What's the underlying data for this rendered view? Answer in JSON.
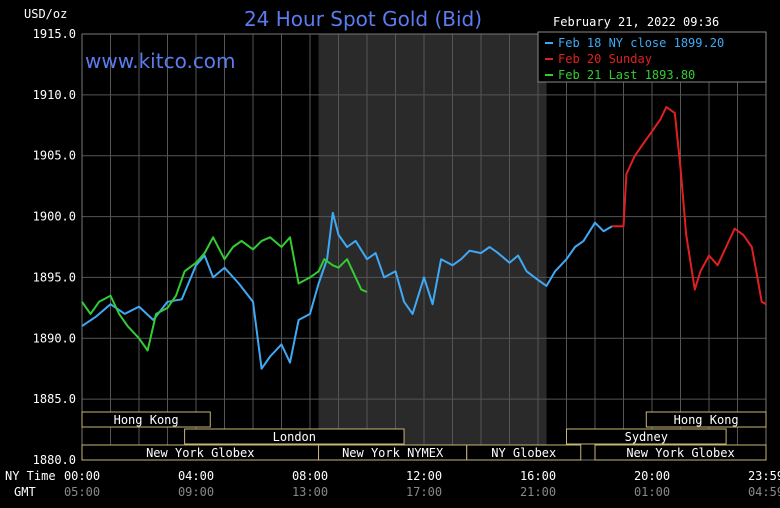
{
  "chart_data": {
    "type": "line",
    "title": "24 Hour Spot Gold (Bid)",
    "ylabel": "USD/oz",
    "watermark": "www.kitco.com",
    "timestamp": "February 21, 2022 09:36",
    "ylim": [
      1880,
      1915
    ],
    "yticks": [
      "1915.0",
      "1910.0",
      "1905.0",
      "1900.0",
      "1895.0",
      "1890.0",
      "1885.0",
      "1880.0"
    ],
    "xlim": [
      0,
      24
    ],
    "x_row_labels": {
      "ny": "NY Time",
      "gmt": "GMT"
    },
    "xticks_ny": [
      "00:00",
      "04:00",
      "08:00",
      "12:00",
      "16:00",
      "20:00",
      "23:59"
    ],
    "xticks_gmt": [
      "05:00",
      "09:00",
      "13:00",
      "17:00",
      "21:00",
      "01:00",
      "04:59"
    ],
    "shaded_region": [
      8.3,
      16.3
    ],
    "grid": true,
    "legend_position": "top-right",
    "legend": [
      {
        "label": "Feb 18 NY close 1899.20",
        "color": "#3fa9f5"
      },
      {
        "label": "Feb 20 Sunday",
        "color": "#e02020"
      },
      {
        "label": "Feb 21 Last 1893.80",
        "color": "#33cc33"
      }
    ],
    "series": [
      {
        "name": "Feb 18",
        "color": "#3fa9f5",
        "points": [
          [
            0,
            1891.0
          ],
          [
            0.5,
            1891.8
          ],
          [
            1,
            1892.8
          ],
          [
            1.5,
            1892.0
          ],
          [
            2,
            1892.6
          ],
          [
            2.5,
            1891.5
          ],
          [
            3,
            1893.0
          ],
          [
            3.5,
            1893.2
          ],
          [
            4,
            1896.0
          ],
          [
            4.3,
            1896.8
          ],
          [
            4.6,
            1895.0
          ],
          [
            5,
            1895.8
          ],
          [
            5.5,
            1894.5
          ],
          [
            6,
            1893.0
          ],
          [
            6.3,
            1887.5
          ],
          [
            6.6,
            1888.5
          ],
          [
            7,
            1889.5
          ],
          [
            7.3,
            1888.0
          ],
          [
            7.6,
            1891.5
          ],
          [
            8,
            1892.0
          ],
          [
            8.3,
            1894.5
          ],
          [
            8.6,
            1896.5
          ],
          [
            8.8,
            1900.3
          ],
          [
            9,
            1898.5
          ],
          [
            9.3,
            1897.5
          ],
          [
            9.6,
            1898.0
          ],
          [
            10,
            1896.5
          ],
          [
            10.3,
            1897.0
          ],
          [
            10.6,
            1895.0
          ],
          [
            11,
            1895.5
          ],
          [
            11.3,
            1893.0
          ],
          [
            11.6,
            1892.0
          ],
          [
            12,
            1895.0
          ],
          [
            12.3,
            1892.8
          ],
          [
            12.6,
            1896.5
          ],
          [
            13,
            1896.0
          ],
          [
            13.3,
            1896.5
          ],
          [
            13.6,
            1897.2
          ],
          [
            14,
            1897.0
          ],
          [
            14.3,
            1897.5
          ],
          [
            14.6,
            1897.0
          ],
          [
            15,
            1896.2
          ],
          [
            15.3,
            1896.8
          ],
          [
            15.6,
            1895.5
          ],
          [
            16,
            1894.8
          ],
          [
            16.3,
            1894.3
          ],
          [
            16.6,
            1895.5
          ],
          [
            17,
            1896.5
          ],
          [
            17.3,
            1897.5
          ],
          [
            17.6,
            1898.0
          ],
          [
            18,
            1899.5
          ],
          [
            18.3,
            1898.8
          ],
          [
            18.6,
            1899.2
          ]
        ]
      },
      {
        "name": "Feb 20",
        "color": "#e02020",
        "points": [
          [
            18.6,
            1899.2
          ],
          [
            19.0,
            1899.2
          ],
          [
            19.1,
            1903.5
          ],
          [
            19.4,
            1905.0
          ],
          [
            19.7,
            1906.0
          ],
          [
            20,
            1907.0
          ],
          [
            20.3,
            1908.0
          ],
          [
            20.5,
            1909.0
          ],
          [
            20.8,
            1908.5
          ],
          [
            21,
            1904.0
          ],
          [
            21.2,
            1898.5
          ],
          [
            21.5,
            1894.0
          ],
          [
            21.7,
            1895.5
          ],
          [
            22,
            1896.8
          ],
          [
            22.3,
            1896.0
          ],
          [
            22.6,
            1897.5
          ],
          [
            22.9,
            1899.0
          ],
          [
            23.2,
            1898.5
          ],
          [
            23.5,
            1897.5
          ],
          [
            23.7,
            1895.0
          ],
          [
            23.85,
            1893.0
          ],
          [
            24,
            1892.8
          ]
        ]
      },
      {
        "name": "Feb 21",
        "color": "#33cc33",
        "points": [
          [
            0,
            1893.0
          ],
          [
            0.3,
            1892.0
          ],
          [
            0.6,
            1893.0
          ],
          [
            1,
            1893.5
          ],
          [
            1.3,
            1892.0
          ],
          [
            1.6,
            1891.0
          ],
          [
            2,
            1890.0
          ],
          [
            2.3,
            1889.0
          ],
          [
            2.6,
            1892.0
          ],
          [
            3,
            1892.5
          ],
          [
            3.3,
            1893.5
          ],
          [
            3.6,
            1895.5
          ],
          [
            4,
            1896.2
          ],
          [
            4.3,
            1897.0
          ],
          [
            4.6,
            1898.3
          ],
          [
            5,
            1896.5
          ],
          [
            5.3,
            1897.5
          ],
          [
            5.6,
            1898.0
          ],
          [
            6,
            1897.3
          ],
          [
            6.3,
            1898.0
          ],
          [
            6.6,
            1898.3
          ],
          [
            7,
            1897.5
          ],
          [
            7.3,
            1898.3
          ],
          [
            7.6,
            1894.5
          ],
          [
            8,
            1895.0
          ],
          [
            8.3,
            1895.5
          ],
          [
            8.5,
            1896.5
          ],
          [
            8.8,
            1896.0
          ],
          [
            9,
            1895.8
          ],
          [
            9.3,
            1896.5
          ],
          [
            9.6,
            1895.0
          ],
          [
            9.8,
            1894.0
          ],
          [
            10,
            1893.8
          ]
        ]
      }
    ],
    "session_bars": [
      {
        "label": "Hong Kong",
        "row": 1,
        "start": 0,
        "end": 4.5
      },
      {
        "label": "Hong Kong",
        "row": 1,
        "start": 19.8,
        "end": 24.0
      },
      {
        "label": "London",
        "row": 2,
        "start": 3.6,
        "end": 11.3
      },
      {
        "label": "Sydney",
        "row": 2,
        "start": 17.0,
        "end": 22.6
      },
      {
        "label": "New York Globex",
        "row": 3,
        "start": 0,
        "end": 8.3
      },
      {
        "label": "New York NYMEX",
        "row": 3,
        "start": 8.3,
        "end": 13.5
      },
      {
        "label": "NY Globex",
        "row": 3,
        "start": 13.5,
        "end": 17.5
      },
      {
        "label": "New York Globex",
        "row": 3,
        "start": 18.0,
        "end": 24.0
      }
    ]
  }
}
